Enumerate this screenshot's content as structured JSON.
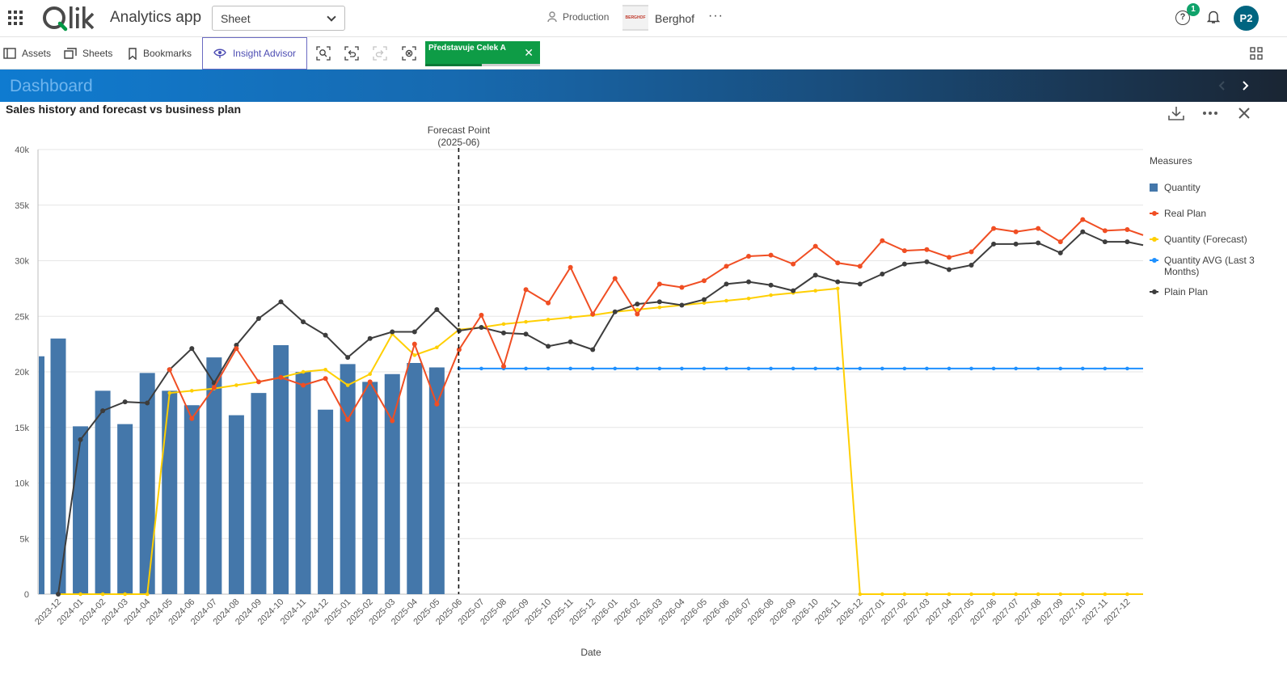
{
  "header": {
    "app_title": "Analytics app",
    "sheet_selector": "Sheet",
    "space_label": "Production",
    "company_logo_text": "BERGHOF",
    "company_name": "Berghof",
    "notification_count": "1",
    "help_glyph": "?",
    "user_initials": "P2"
  },
  "toolbar": {
    "assets_label": "Assets",
    "sheets_label": "Sheets",
    "bookmarks_label": "Bookmarks",
    "insight_label": "Insight Advisor",
    "selection_chip_text": "Představuje Celek A"
  },
  "dashboard": {
    "title": "Dashboard"
  },
  "colors": {
    "quantity": "#4477aa",
    "real_plan": "#f04e23",
    "forecast": "#ffcf02",
    "avg": "#1e90ff",
    "plain_plan": "#3d3d3d"
  },
  "chart_data": {
    "type": "bar",
    "title": "Sales history and forecast vs business plan",
    "xlabel": "Date",
    "ylabel": "",
    "ylim": [
      0,
      40000
    ],
    "yticks": [
      "0",
      "5k",
      "10k",
      "15k",
      "20k",
      "25k",
      "30k",
      "35k",
      "40k"
    ],
    "ytick_values": [
      0,
      5000,
      10000,
      15000,
      20000,
      25000,
      30000,
      35000,
      40000
    ],
    "grid": true,
    "legend_title": "Measures",
    "legend_position": "right",
    "forecast_marker": {
      "category": "2025-06",
      "label_line1": "Forecast Point",
      "label_line2": "(2025-06)"
    },
    "categories": [
      "2023-12",
      "2024-01",
      "2024-02",
      "2024-03",
      "2024-04",
      "2024-05",
      "2024-06",
      "2024-07",
      "2024-08",
      "2024-09",
      "2024-10",
      "2024-11",
      "2024-12",
      "2025-01",
      "2025-02",
      "2025-03",
      "2025-04",
      "2025-05",
      "2025-06",
      "2025-07",
      "2025-08",
      "2025-09",
      "2025-10",
      "2025-11",
      "2025-12",
      "2026-01",
      "2026-02",
      "2026-03",
      "2026-04",
      "2026-05",
      "2026-06",
      "2026-07",
      "2026-08",
      "2026-09",
      "2026-10",
      "2026-11",
      "2026-12",
      "2027-01",
      "2027-02",
      "2027-03",
      "2027-04",
      "2027-05",
      "2027-06",
      "2027-07",
      "2027-08",
      "2027-09",
      "2027-10",
      "2027-11",
      "2027-12"
    ],
    "series": [
      {
        "name": "Quantity",
        "kind": "bar",
        "values": [
          23000,
          15100,
          18300,
          15300,
          19900,
          18300,
          17000,
          21300,
          16100,
          18100,
          22400,
          20000,
          16600,
          20700,
          19100,
          19800,
          20800,
          20400,
          null,
          null,
          null,
          null,
          null,
          null,
          null,
          null,
          null,
          null,
          null,
          null,
          null,
          null,
          null,
          null,
          null,
          null,
          null,
          null,
          null,
          null,
          null,
          null,
          null,
          null,
          null,
          null,
          null,
          null,
          null
        ]
      },
      {
        "name": "Real Plan",
        "kind": "line",
        "values": [
          null,
          null,
          null,
          null,
          null,
          20200,
          15800,
          18600,
          22100,
          19100,
          19500,
          18800,
          19400,
          15700,
          19100,
          15600,
          22500,
          17100,
          22000,
          25100,
          20500,
          27400,
          26200,
          29400,
          25200,
          28400,
          25200,
          27900,
          27600,
          28200,
          29500,
          30400,
          30500,
          29700,
          31300,
          29800,
          29500,
          31800,
          30900,
          31000,
          30300,
          30800,
          32900,
          32600,
          32900,
          31700,
          33700,
          32700,
          32800
        ]
      },
      {
        "name": "Quantity (Forecast)",
        "kind": "line",
        "values": [
          0,
          0,
          0,
          0,
          0,
          18100,
          18300,
          18500,
          18800,
          19100,
          19500,
          20000,
          20200,
          18800,
          19800,
          23400,
          21500,
          22200,
          23800,
          24000,
          24300,
          24500,
          24700,
          24900,
          25100,
          25400,
          25600,
          25800,
          26000,
          26200,
          26400,
          26600,
          26900,
          27100,
          27300,
          27500,
          0,
          0,
          0,
          0,
          0,
          0,
          0,
          0,
          0,
          0,
          0,
          0,
          0
        ]
      },
      {
        "name": "Quantity AVG (Last 3 Months)",
        "kind": "line",
        "values": [
          null,
          null,
          null,
          null,
          null,
          null,
          null,
          null,
          null,
          null,
          null,
          null,
          null,
          null,
          null,
          null,
          null,
          null,
          20300,
          20300,
          20300,
          20300,
          20300,
          20300,
          20300,
          20300,
          20300,
          20300,
          20300,
          20300,
          20300,
          20300,
          20300,
          20300,
          20300,
          20300,
          20300,
          20300,
          20300,
          20300,
          20300,
          20300,
          20300,
          20300,
          20300,
          20300,
          20300,
          20300,
          20300
        ]
      },
      {
        "name": "Plain Plan",
        "kind": "line",
        "values": [
          0,
          13900,
          16500,
          17300,
          17200,
          20200,
          22100,
          19000,
          22400,
          24800,
          26300,
          24500,
          23300,
          21300,
          23000,
          23600,
          23600,
          25600,
          23700,
          24000,
          23500,
          23400,
          22300,
          22700,
          22000,
          25400,
          26100,
          26300,
          26000,
          26500,
          27900,
          28100,
          27800,
          27300,
          28700,
          28100,
          27900,
          28800,
          29700,
          29900,
          29200,
          29600,
          31500,
          31500,
          31600,
          30700,
          32600,
          31700,
          31700
        ]
      }
    ]
  }
}
